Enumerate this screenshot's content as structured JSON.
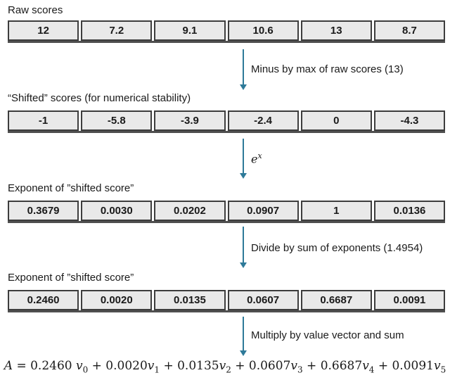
{
  "colors": {
    "arrow": "#2e7a99",
    "cell_bg": "#e9e9e9",
    "cell_border": "#3d3d3d",
    "row_bottom": "#4f4f4f",
    "text": "#1a1a1a"
  },
  "flow": {
    "rows": [
      {
        "label": "Raw scores",
        "cells": [
          "12",
          "7.2",
          "9.1",
          "10.6",
          "13",
          "8.7"
        ]
      },
      {
        "label": "“Shifted” scores (for numerical stability)",
        "cells": [
          "-1",
          "-5.8",
          "-3.9",
          "-2.4",
          "0",
          "-4.3"
        ]
      },
      {
        "label": "Exponent of ”shifted score”",
        "cells": [
          "0.3679",
          "0.0030",
          "0.0202",
          "0.0907",
          "1",
          "0.0136"
        ]
      },
      {
        "label": "Exponent of ”shifted score”",
        "cells": [
          "0.2460",
          "0.0020",
          "0.0135",
          "0.0607",
          "0.6687",
          "0.0091"
        ]
      }
    ],
    "arrows": [
      {
        "label": "Minus by max of raw scores (13)"
      },
      {
        "base": "e",
        "sup": "x"
      },
      {
        "label": "Divide by sum of exponents (1.4954)"
      },
      {
        "label": "Multiply by value vector and sum"
      }
    ],
    "formula": {
      "lhs": "A",
      "equals": "=",
      "plus": "+",
      "terms": [
        {
          "coef": "0.2460 ",
          "v": "v",
          "sub": "0"
        },
        {
          "coef": "0.0020",
          "v": "v",
          "sub": "1"
        },
        {
          "coef": "0.0135",
          "v": "v",
          "sub": "2"
        },
        {
          "coef": "0.0607",
          "v": "v",
          "sub": "3"
        },
        {
          "coef": "0.6687",
          "v": "v",
          "sub": "4"
        },
        {
          "coef": "0.0091",
          "v": "v",
          "sub": "5"
        }
      ]
    }
  }
}
